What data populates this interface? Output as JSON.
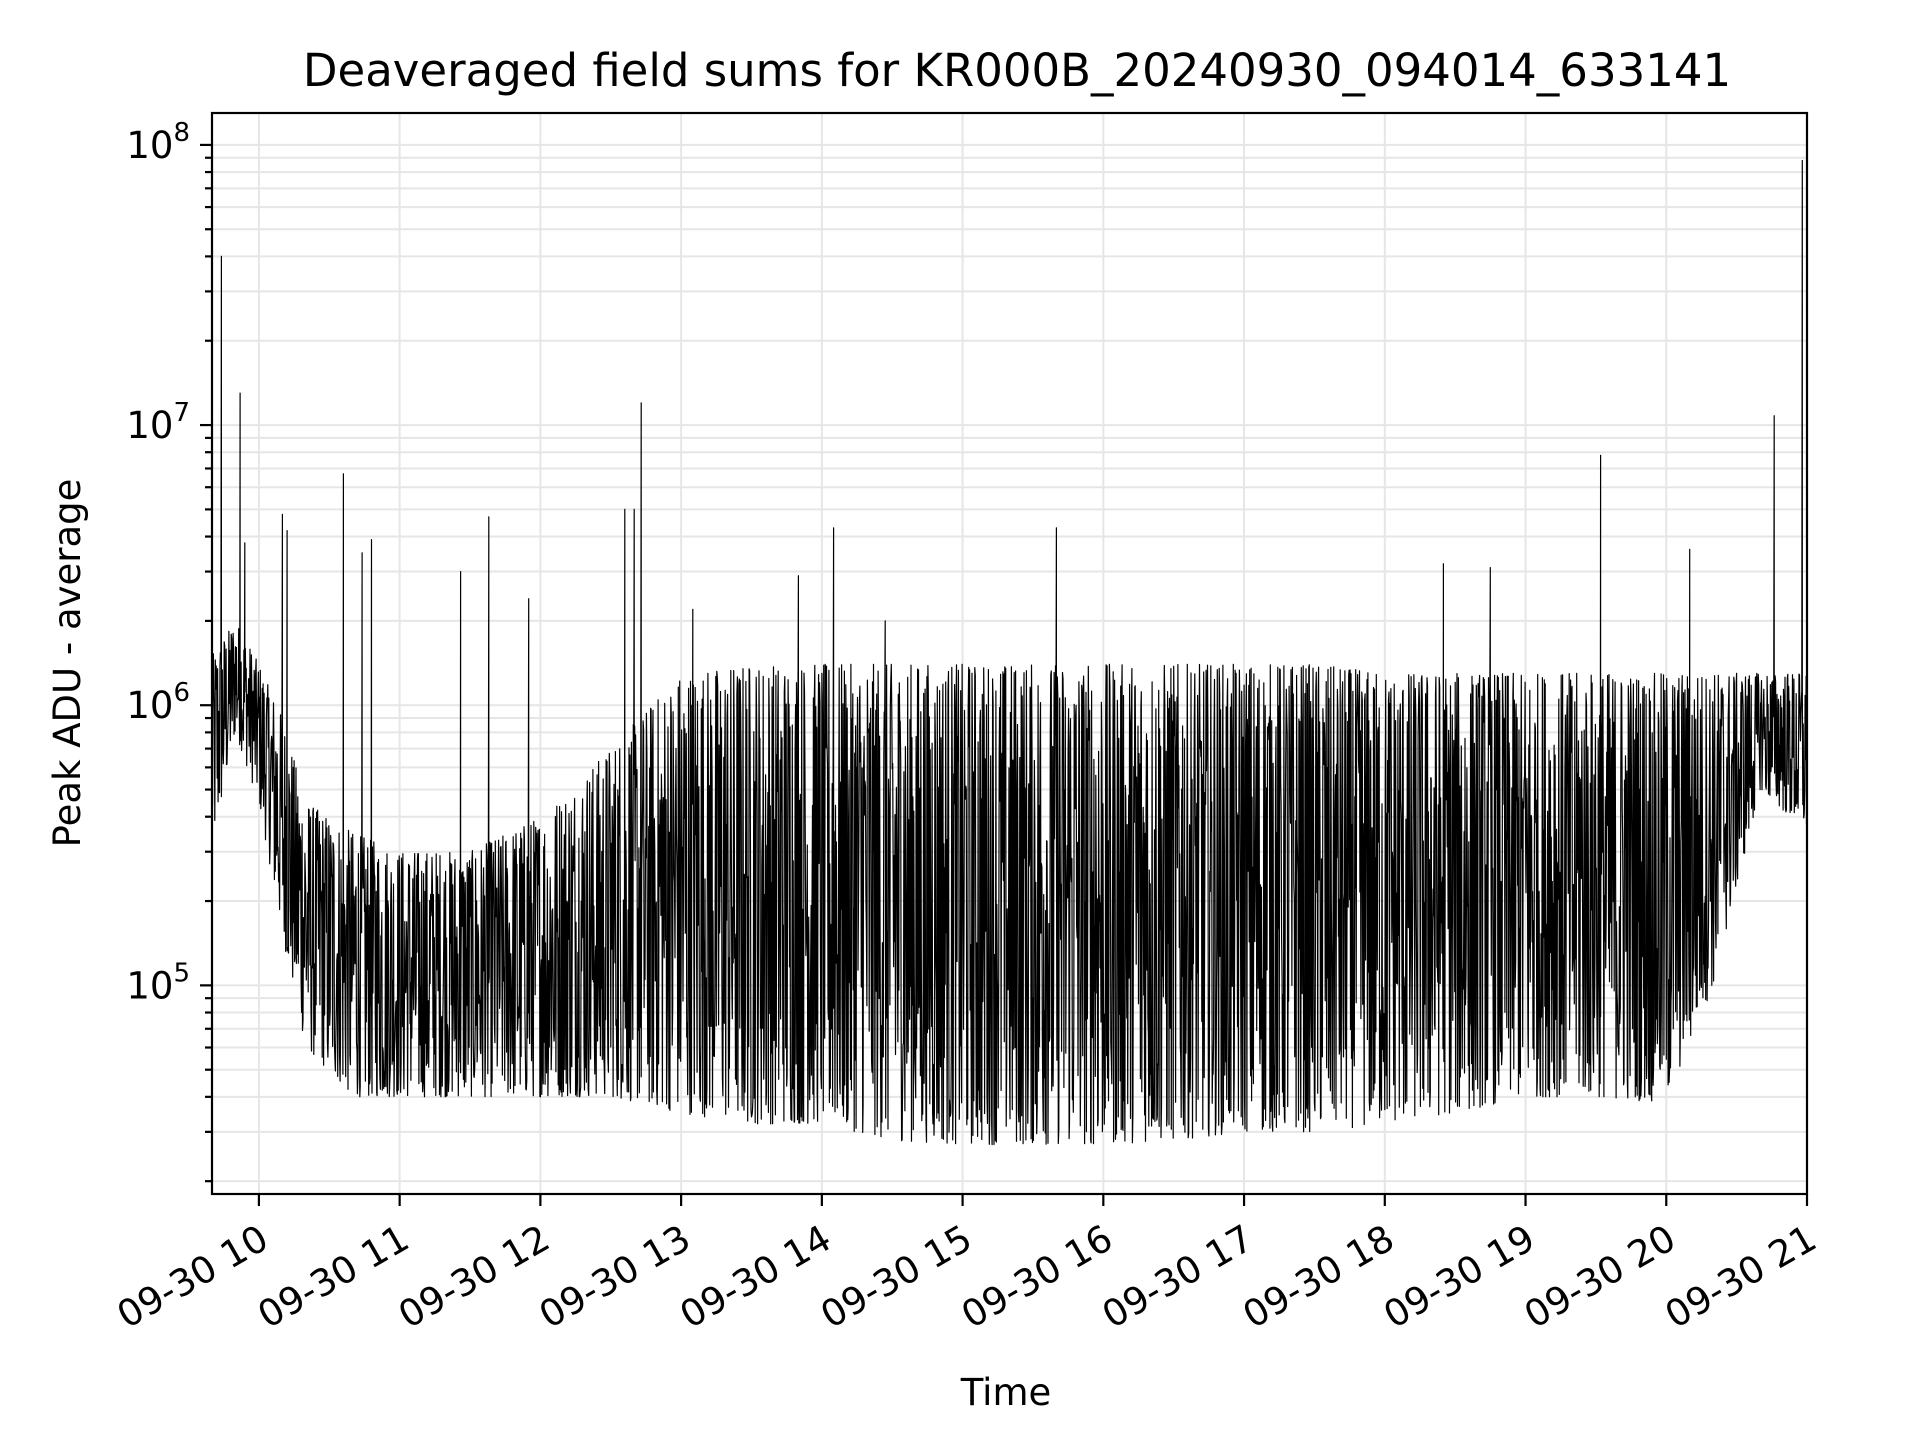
{
  "chart_data": {
    "type": "line",
    "title": "Deaveraged field sums for KR000B_20240930_094014_633141",
    "xlabel": "Time",
    "ylabel": "Peak ADU - average",
    "yscale": "log",
    "xlim": [
      "2024-09-30 09:40",
      "2024-09-30 21:00"
    ],
    "ylim": [
      18000,
      130000000
    ],
    "grid": true,
    "grid_minor_y": true,
    "line_color": "#000000",
    "x_ticks": [
      {
        "t": "2024-09-30 10:00",
        "label": "09-30 10"
      },
      {
        "t": "2024-09-30 11:00",
        "label": "09-30 11"
      },
      {
        "t": "2024-09-30 12:00",
        "label": "09-30 12"
      },
      {
        "t": "2024-09-30 13:00",
        "label": "09-30 13"
      },
      {
        "t": "2024-09-30 14:00",
        "label": "09-30 14"
      },
      {
        "t": "2024-09-30 15:00",
        "label": "09-30 15"
      },
      {
        "t": "2024-09-30 16:00",
        "label": "09-30 16"
      },
      {
        "t": "2024-09-30 17:00",
        "label": "09-30 17"
      },
      {
        "t": "2024-09-30 18:00",
        "label": "09-30 18"
      },
      {
        "t": "2024-09-30 19:00",
        "label": "09-30 19"
      },
      {
        "t": "2024-09-30 20:00",
        "label": "09-30 20"
      },
      {
        "t": "2024-09-30 21:00",
        "label": "09-30 21"
      }
    ],
    "y_ticks": [
      {
        "value": 100000,
        "base": "10",
        "exp": "5"
      },
      {
        "value": 1000000,
        "base": "10",
        "exp": "6"
      },
      {
        "value": 10000000,
        "base": "10",
        "exp": "7"
      },
      {
        "value": 100000000,
        "base": "10",
        "exp": "8"
      }
    ],
    "series": [
      {
        "lower_envelope": [
          {
            "t": "2024-09-30 09:40",
            "v": 300000
          },
          {
            "t": "2024-09-30 09:50",
            "v": 800000
          },
          {
            "t": "2024-09-30 10:00",
            "v": 450000
          },
          {
            "t": "2024-09-30 10:10",
            "v": 150000
          },
          {
            "t": "2024-09-30 10:20",
            "v": 60000
          },
          {
            "t": "2024-09-30 10:40",
            "v": 40000
          },
          {
            "t": "2024-09-30 11:00",
            "v": 40000
          },
          {
            "t": "2024-09-30 11:30",
            "v": 40000
          },
          {
            "t": "2024-09-30 12:00",
            "v": 40000
          },
          {
            "t": "2024-09-30 12:30",
            "v": 40000
          },
          {
            "t": "2024-09-30 13:00",
            "v": 35000
          },
          {
            "t": "2024-09-30 13:30",
            "v": 32000
          },
          {
            "t": "2024-09-30 14:00",
            "v": 32000
          },
          {
            "t": "2024-09-30 14:30",
            "v": 28000
          },
          {
            "t": "2024-09-30 15:00",
            "v": 27000
          },
          {
            "t": "2024-09-30 15:30",
            "v": 27000
          },
          {
            "t": "2024-09-30 16:00",
            "v": 27000
          },
          {
            "t": "2024-09-30 16:30",
            "v": 28000
          },
          {
            "t": "2024-09-30 17:00",
            "v": 30000
          },
          {
            "t": "2024-09-30 17:30",
            "v": 30000
          },
          {
            "t": "2024-09-30 18:00",
            "v": 32000
          },
          {
            "t": "2024-09-30 18:30",
            "v": 35000
          },
          {
            "t": "2024-09-30 19:00",
            "v": 40000
          },
          {
            "t": "2024-09-30 19:30",
            "v": 40000
          },
          {
            "t": "2024-09-30 20:00",
            "v": 38000
          },
          {
            "t": "2024-09-30 20:20",
            "v": 100000
          },
          {
            "t": "2024-09-30 20:40",
            "v": 500000
          },
          {
            "t": "2024-09-30 21:00",
            "v": 350000
          }
        ],
        "upper_envelope": [
          {
            "t": "2024-09-30 09:40",
            "v": 1500000
          },
          {
            "t": "2024-09-30 09:50",
            "v": 2000000
          },
          {
            "t": "2024-09-30 10:00",
            "v": 1400000
          },
          {
            "t": "2024-09-30 10:10",
            "v": 900000
          },
          {
            "t": "2024-09-30 10:20",
            "v": 450000
          },
          {
            "t": "2024-09-30 10:40",
            "v": 350000
          },
          {
            "t": "2024-09-30 11:00",
            "v": 300000
          },
          {
            "t": "2024-09-30 11:30",
            "v": 300000
          },
          {
            "t": "2024-09-30 12:00",
            "v": 400000
          },
          {
            "t": "2024-09-30 12:30",
            "v": 700000
          },
          {
            "t": "2024-09-30 13:00",
            "v": 1300000
          },
          {
            "t": "2024-09-30 13:30",
            "v": 1400000
          },
          {
            "t": "2024-09-30 14:00",
            "v": 1400000
          },
          {
            "t": "2024-09-30 14:30",
            "v": 1400000
          },
          {
            "t": "2024-09-30 15:00",
            "v": 1400000
          },
          {
            "t": "2024-09-30 15:30",
            "v": 1400000
          },
          {
            "t": "2024-09-30 16:00",
            "v": 1400000
          },
          {
            "t": "2024-09-30 16:30",
            "v": 1400000
          },
          {
            "t": "2024-09-30 17:00",
            "v": 1400000
          },
          {
            "t": "2024-09-30 17:30",
            "v": 1400000
          },
          {
            "t": "2024-09-30 18:00",
            "v": 1300000
          },
          {
            "t": "2024-09-30 18:30",
            "v": 1300000
          },
          {
            "t": "2024-09-30 19:00",
            "v": 1300000
          },
          {
            "t": "2024-09-30 19:30",
            "v": 1300000
          },
          {
            "t": "2024-09-30 20:00",
            "v": 1300000
          },
          {
            "t": "2024-09-30 20:20",
            "v": 1300000
          },
          {
            "t": "2024-09-30 20:40",
            "v": 1300000
          },
          {
            "t": "2024-09-30 21:00",
            "v": 1300000
          }
        ],
        "spikes": [
          {
            "t": "2024-09-30 09:44",
            "v": 40000000
          },
          {
            "t": "2024-09-30 09:52",
            "v": 13000000
          },
          {
            "t": "2024-09-30 09:54",
            "v": 3800000
          },
          {
            "t": "2024-09-30 10:10",
            "v": 4800000
          },
          {
            "t": "2024-09-30 10:12",
            "v": 4200000
          },
          {
            "t": "2024-09-30 10:36",
            "v": 6700000
          },
          {
            "t": "2024-09-30 10:44",
            "v": 3500000
          },
          {
            "t": "2024-09-30 10:48",
            "v": 3900000
          },
          {
            "t": "2024-09-30 11:26",
            "v": 3000000
          },
          {
            "t": "2024-09-30 11:38",
            "v": 4700000
          },
          {
            "t": "2024-09-30 11:55",
            "v": 2400000
          },
          {
            "t": "2024-09-30 12:36",
            "v": 5000000
          },
          {
            "t": "2024-09-30 12:40",
            "v": 5000000
          },
          {
            "t": "2024-09-30 12:43",
            "v": 12000000
          },
          {
            "t": "2024-09-30 13:05",
            "v": 2200000
          },
          {
            "t": "2024-09-30 13:50",
            "v": 2900000
          },
          {
            "t": "2024-09-30 14:05",
            "v": 4300000
          },
          {
            "t": "2024-09-30 14:27",
            "v": 2000000
          },
          {
            "t": "2024-09-30 15:40",
            "v": 4300000
          },
          {
            "t": "2024-09-30 18:25",
            "v": 3200000
          },
          {
            "t": "2024-09-30 18:45",
            "v": 3100000
          },
          {
            "t": "2024-09-30 19:32",
            "v": 7800000
          },
          {
            "t": "2024-09-30 20:10",
            "v": 3600000
          },
          {
            "t": "2024-09-30 20:46",
            "v": 10800000
          },
          {
            "t": "2024-09-30 20:58",
            "v": 88000000
          }
        ]
      }
    ]
  }
}
